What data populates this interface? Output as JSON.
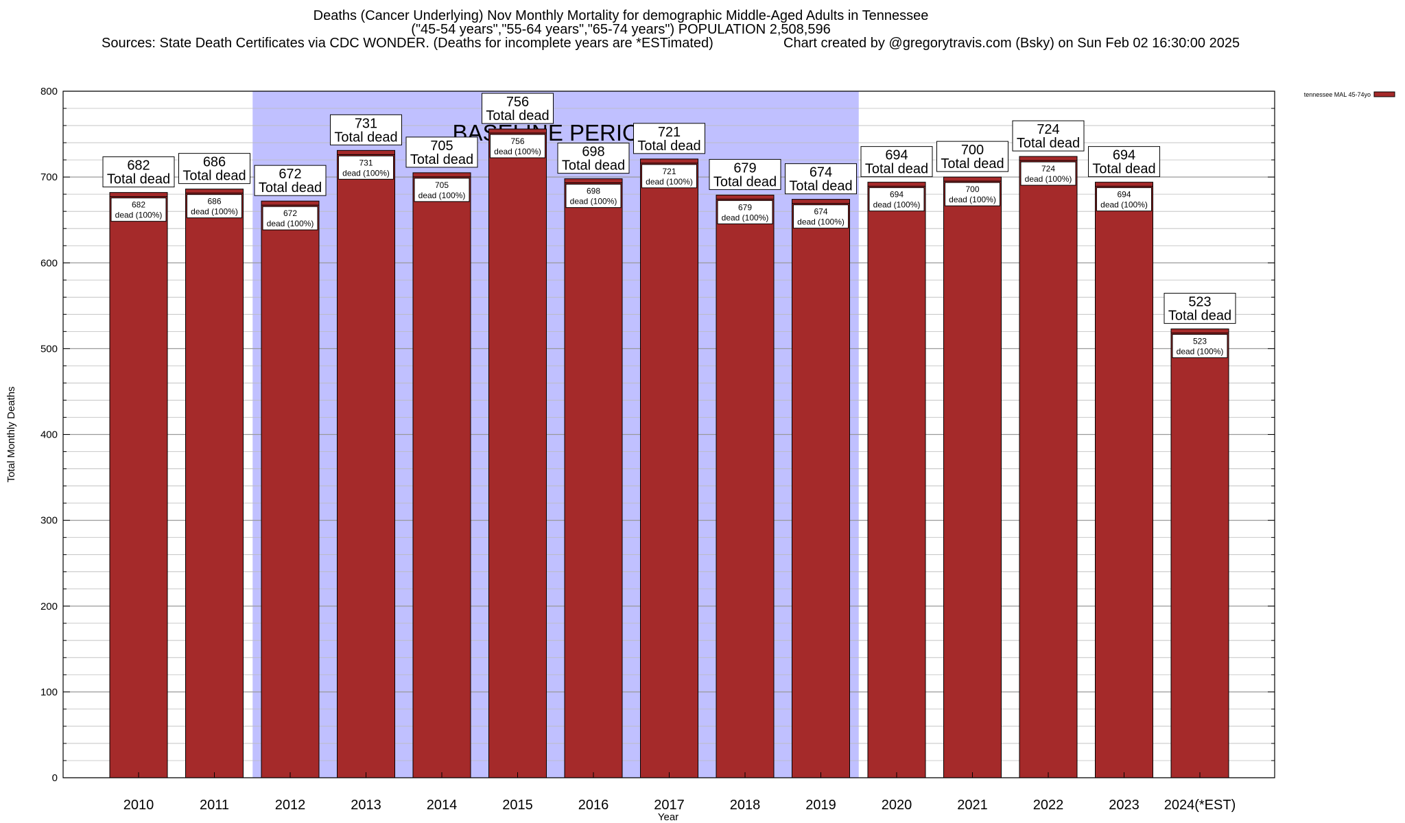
{
  "title": {
    "line1": "Deaths (Cancer Underlying) Nov Monthly Mortality for demographic Middle-Aged Adults in Tennessee",
    "line2": "(\"45-54 years\",\"55-64 years\",\"65-74 years\") POPULATION 2,508,596",
    "line3": "Sources: State Death Certificates via CDC WONDER. (Deaths for incomplete years are *ESTimated)",
    "line3b": "Chart created by @gregorytravis.com (Bsky) on Sun Feb 02 16:30:00 2025"
  },
  "colors": {
    "bar": "#a52a2a",
    "baseline_shade": "#c0c0ff",
    "grid": "#bbbbbb"
  },
  "chart_data": {
    "type": "bar",
    "categories": [
      "2010",
      "2011",
      "2012",
      "2013",
      "2014",
      "2015",
      "2016",
      "2017",
      "2018",
      "2019",
      "2020",
      "2021",
      "2022",
      "2023",
      "2024(*EST)"
    ],
    "series": [
      {
        "name": "tennessee MAL 45-74yo",
        "values": [
          682,
          686,
          672,
          731,
          705,
          756,
          698,
          721,
          679,
          674,
          694,
          700,
          724,
          694,
          523
        ]
      }
    ],
    "xlabel": "Year",
    "ylabel": "Total Monthly Deaths",
    "ylim": [
      0,
      800
    ],
    "yticks": [
      0,
      100,
      200,
      300,
      400,
      500,
      600,
      700,
      800
    ],
    "grid": true,
    "legend": "top-right",
    "baseline_period": {
      "label": "BASELINE PERIOD",
      "from": "2012",
      "to": "2019"
    },
    "top_label_suffix": "Total dead",
    "inner_label_suffix": "dead (100%)"
  }
}
